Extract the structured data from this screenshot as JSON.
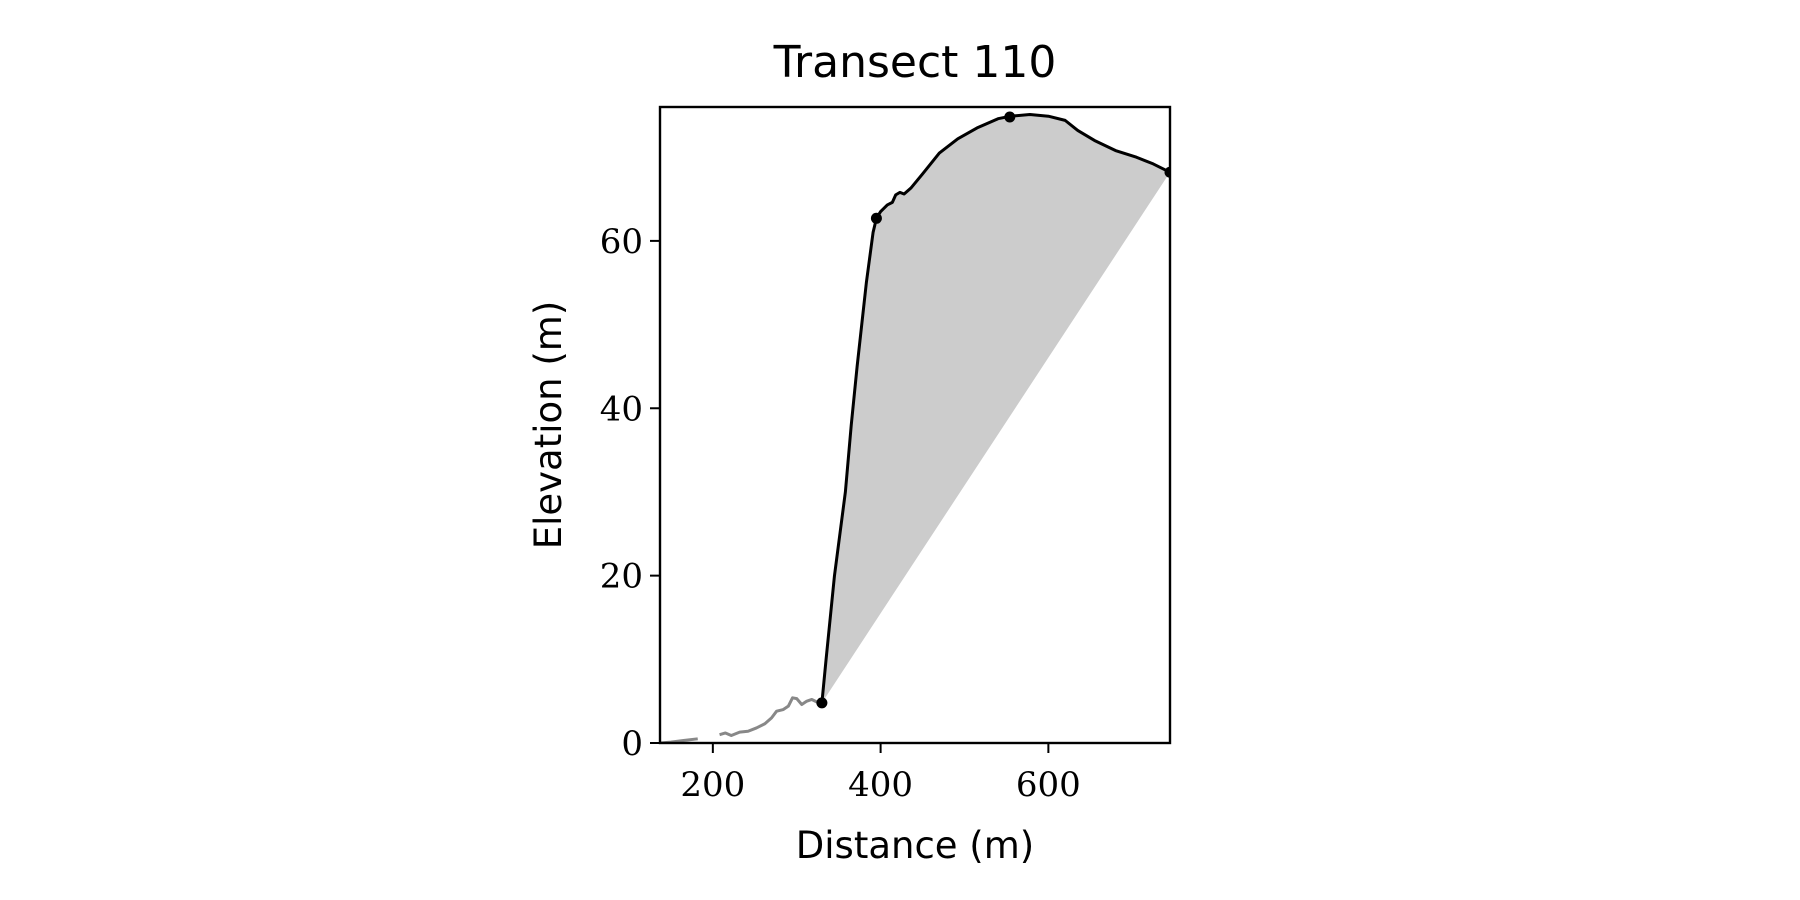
{
  "chart_data": {
    "type": "line",
    "title": "Transect 110",
    "xlabel": "Distance (m)",
    "ylabel": "Elevation (m)",
    "xlim": [
      137,
      745
    ],
    "ylim": [
      0,
      76
    ],
    "xticks": [
      200,
      400,
      600
    ],
    "yticks": [
      0,
      20,
      40,
      60
    ],
    "grid": false,
    "legend": "none",
    "colors": {
      "profile": "#000000",
      "offshore": "#888888",
      "fill": "#cccccc",
      "axes": "#000000"
    },
    "series": [
      {
        "role": "offshore profile",
        "segments": [
          [
            [
              137,
              0.0
            ],
            [
              150,
              0.1
            ],
            [
              165,
              0.3
            ],
            [
              182,
              0.5
            ]
          ],
          [
            [
              208,
              1.0
            ],
            [
              215,
              1.2
            ],
            [
              222,
              0.9
            ],
            [
              232,
              1.3
            ],
            [
              242,
              1.4
            ],
            [
              252,
              1.8
            ],
            [
              262,
              2.3
            ],
            [
              270,
              3.0
            ],
            [
              276,
              3.8
            ],
            [
              284,
              4.0
            ],
            [
              290,
              4.4
            ],
            [
              295,
              5.4
            ],
            [
              300,
              5.3
            ],
            [
              306,
              4.6
            ],
            [
              312,
              5.0
            ],
            [
              318,
              5.2
            ],
            [
              324,
              4.9
            ],
            [
              330,
              4.8
            ]
          ]
        ]
      },
      {
        "role": "cliff profile",
        "points": [
          [
            330,
            4.8
          ],
          [
            335,
            10
          ],
          [
            345,
            20
          ],
          [
            358,
            30
          ],
          [
            365,
            38
          ],
          [
            372,
            45
          ],
          [
            383,
            55
          ],
          [
            391,
            61
          ],
          [
            395,
            62.7
          ],
          [
            400,
            63.5
          ],
          [
            408,
            64.3
          ],
          [
            414,
            64.6
          ],
          [
            418,
            65.5
          ],
          [
            423,
            65.8
          ],
          [
            428,
            65.6
          ],
          [
            436,
            66.3
          ],
          [
            450,
            68.0
          ],
          [
            470,
            70.5
          ],
          [
            492,
            72.2
          ],
          [
            515,
            73.5
          ],
          [
            540,
            74.6
          ],
          [
            555,
            74.9
          ],
          [
            578,
            75.1
          ],
          [
            600,
            74.9
          ],
          [
            620,
            74.4
          ],
          [
            635,
            73.2
          ],
          [
            655,
            72.0
          ],
          [
            680,
            70.8
          ],
          [
            705,
            70.0
          ],
          [
            725,
            69.2
          ],
          [
            745,
            68.2
          ]
        ]
      }
    ],
    "markers": [
      [
        330,
        4.8
      ],
      [
        395,
        62.7
      ],
      [
        554,
        74.8
      ],
      [
        745,
        68.2
      ]
    ],
    "shaded_polygon": [
      [
        330,
        4.8
      ],
      [
        395,
        62.7
      ],
      [
        554,
        74.8
      ],
      [
        745,
        68.2
      ]
    ]
  }
}
